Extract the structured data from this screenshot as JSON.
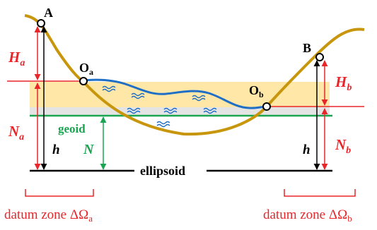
{
  "labels": {
    "point_a": "A",
    "point_b": "B",
    "o_a_main": "O",
    "o_a_sub": "a",
    "o_b_main": "O",
    "o_b_sub": "b",
    "h_a_main": "H",
    "h_a_sub": "a",
    "h_b_main": "H",
    "h_b_sub": "b",
    "n_a_main": "N",
    "n_a_sub": "a",
    "n_b_main": "N",
    "n_b_sub": "b",
    "geoid": "geoid",
    "n_geoid": "N",
    "h_left": "h",
    "h_right": "h",
    "ellipsoid": "ellipsoid",
    "zone_a_main": "datum zone ΔΩ",
    "zone_a_sub": "a",
    "zone_b_main": "datum zone ΔΩ",
    "zone_b_sub": "b"
  },
  "colors": {
    "terrain": "#c8960c",
    "water": "#1f6fc6",
    "band": "#ffe08a",
    "geoid": "#1aa550",
    "red": "#e8262a",
    "ellipsoid": "#000000",
    "gray_band": "#d9d9d9"
  }
}
